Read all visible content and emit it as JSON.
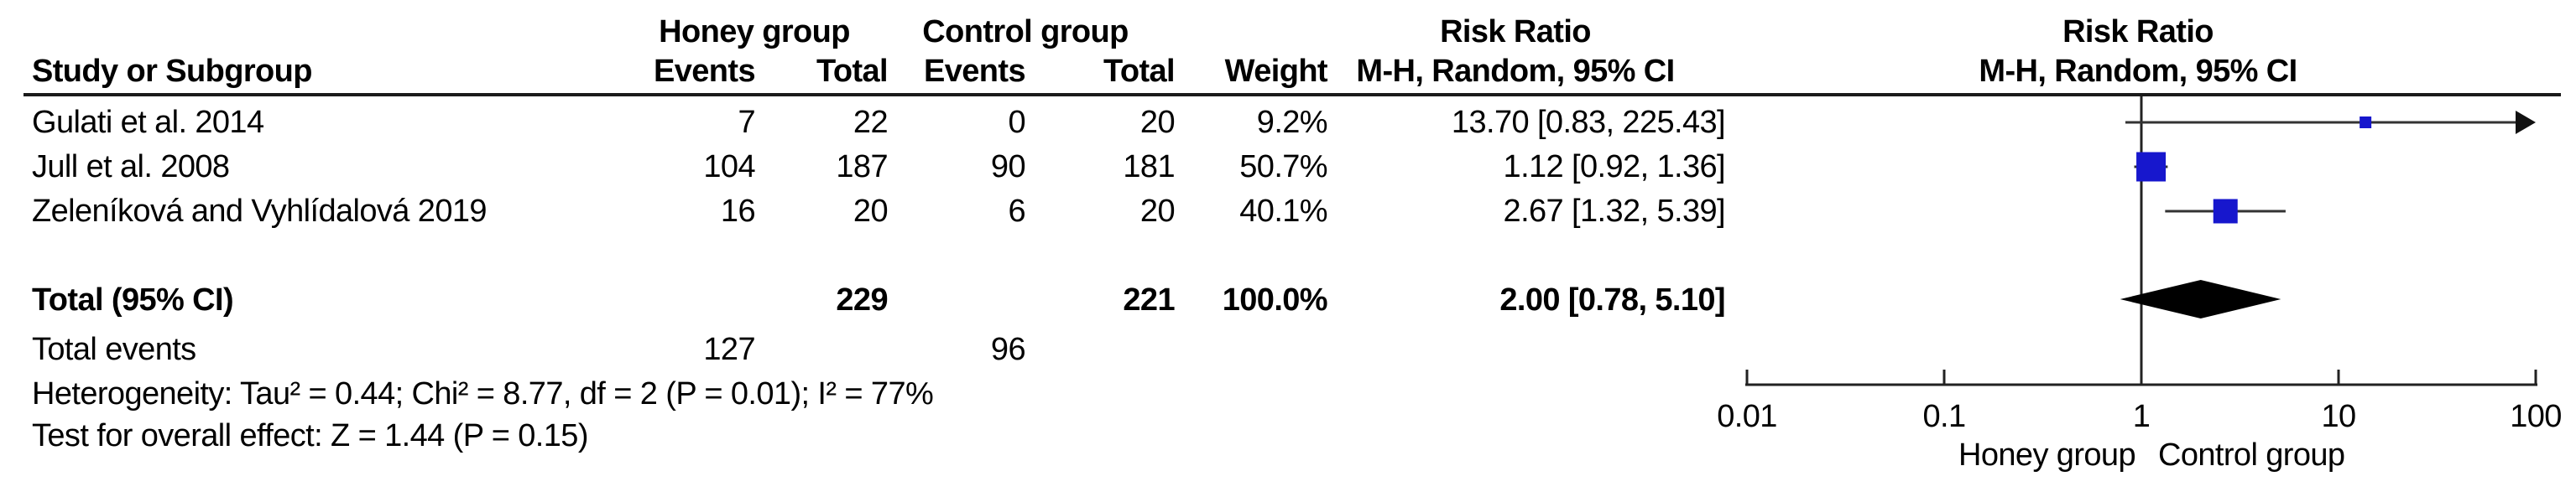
{
  "header": {
    "study_col": "Study or Subgroup",
    "honey_group": "Honey group",
    "control_group": "Control group",
    "events": "Events",
    "total": "Total",
    "weight": "Weight",
    "risk_ratio": "Risk Ratio",
    "method_ci": "M-H, Random, 95% CI"
  },
  "rows": [
    {
      "study": "Gulati et al. 2014",
      "honey_events": "7",
      "honey_total": "22",
      "control_events": "0",
      "control_total": "20",
      "weight": "9.2%",
      "rr_ci": "13.70 [0.83, 225.43]"
    },
    {
      "study": "Jull et al. 2008",
      "honey_events": "104",
      "honey_total": "187",
      "control_events": "90",
      "control_total": "181",
      "weight": "50.7%",
      "rr_ci": "1.12 [0.92, 1.36]"
    },
    {
      "study": "Zeleníková and Vyhlídalová 2019",
      "honey_events": "16",
      "honey_total": "20",
      "control_events": "6",
      "control_total": "20",
      "weight": "40.1%",
      "rr_ci": "2.67 [1.32, 5.39]"
    }
  ],
  "total_row": {
    "label": "Total (95% CI)",
    "honey_total": "229",
    "control_total": "221",
    "weight": "100.0%",
    "rr_ci": "2.00 [0.78, 5.10]"
  },
  "total_events": {
    "label": "Total events",
    "honey": "127",
    "control": "96"
  },
  "footer": {
    "heterogeneity": "Heterogeneity: Tau² = 0.44; Chi² = 8.77, df = 2 (P = 0.01); I² = 77%",
    "overall_effect": "Test for overall effect: Z = 1.44 (P = 0.15)"
  },
  "axis": {
    "ticks": [
      "0.01",
      "0.1",
      "1",
      "10",
      "100"
    ],
    "left_label": "Honey group",
    "right_label": "Control group"
  },
  "colors": {
    "marker_blue": "#1717CD",
    "line": "#333333",
    "axis": "#222222",
    "diamond": "#000000"
  },
  "chart_data": {
    "type": "scatter",
    "subtype": "forest-plot",
    "title": "",
    "effect_measure": "Risk Ratio, M-H, Random, 95% CI",
    "x_scale": "log10",
    "x_ticks": [
      0.01,
      0.1,
      1,
      10,
      100
    ],
    "xlim": [
      0.01,
      100
    ],
    "axis_label_left": "Honey group",
    "axis_label_right": "Control group",
    "studies": [
      {
        "name": "Gulati et al. 2014",
        "rr": 13.7,
        "ci_low": 0.83,
        "ci_high": 225.43,
        "weight_pct": 9.2
      },
      {
        "name": "Jull et al. 2008",
        "rr": 1.12,
        "ci_low": 0.92,
        "ci_high": 1.36,
        "weight_pct": 50.7
      },
      {
        "name": "Zeleníková and Vyhlídalová 2019",
        "rr": 2.67,
        "ci_low": 1.32,
        "ci_high": 5.39,
        "weight_pct": 40.1
      }
    ],
    "total": {
      "label": "Total (95% CI)",
      "rr": 2.0,
      "ci_low": 0.78,
      "ci_high": 5.1,
      "weight_pct": 100.0
    },
    "heterogeneity": {
      "tau2": 0.44,
      "chi2": 8.77,
      "df": 2,
      "p": 0.01,
      "i2_pct": 77
    },
    "overall_effect": {
      "z": 1.44,
      "p": 0.15
    }
  }
}
